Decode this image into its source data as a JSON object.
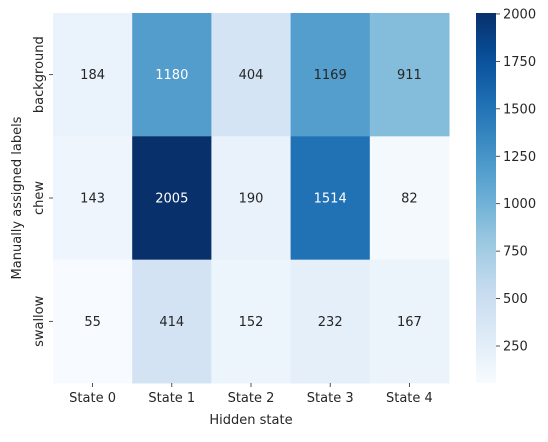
{
  "chart_data": {
    "type": "heatmap",
    "title": "",
    "xlabel": "Hidden state",
    "ylabel": "Manually assigned labels",
    "x_categories": [
      "State 0",
      "State 1",
      "State 2",
      "State 3",
      "State 4"
    ],
    "y_categories": [
      "background",
      "chew",
      "swallow"
    ],
    "values": [
      [
        184,
        1180,
        404,
        1169,
        911
      ],
      [
        143,
        2005,
        190,
        1514,
        82
      ],
      [
        55,
        414,
        152,
        232,
        167
      ]
    ],
    "colormap": "Blues",
    "vmin": 55,
    "vmax": 2005,
    "colorbar_ticks": [
      250,
      500,
      750,
      1000,
      1250,
      1500,
      1750,
      2000
    ],
    "annotations": true,
    "grid": false
  }
}
